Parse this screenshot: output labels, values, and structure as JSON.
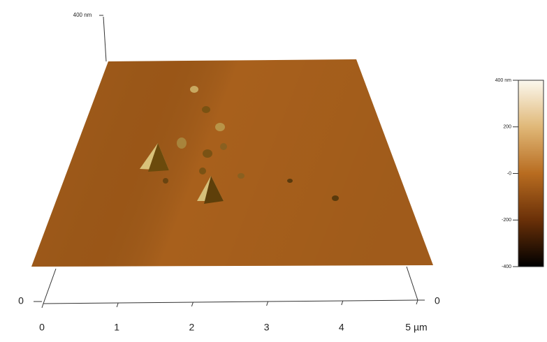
{
  "chart_data": {
    "type": "surface",
    "xlim": [
      0,
      5
    ],
    "xticks": [
      0,
      1,
      2,
      3,
      4,
      {
        "value": 5,
        "label": "5 µm"
      }
    ],
    "ylim": [
      0,
      5
    ],
    "yticks": [
      0
    ],
    "zlim": [
      0,
      400
    ],
    "zticks": [
      0,
      {
        "value": 400,
        "label": "400 nm"
      }
    ],
    "surface_color": "#a8601c",
    "colorbar": {
      "lim": [
        -400,
        400
      ],
      "ticks": [
        {
          "value": 400,
          "label": "400 nm"
        },
        200,
        {
          "value": 0,
          "label": "-0"
        },
        -200,
        -400
      ],
      "colors": [
        "#fbf8ee",
        "#e0b878",
        "#b86c20",
        "#6a3008",
        "#000000"
      ]
    }
  }
}
